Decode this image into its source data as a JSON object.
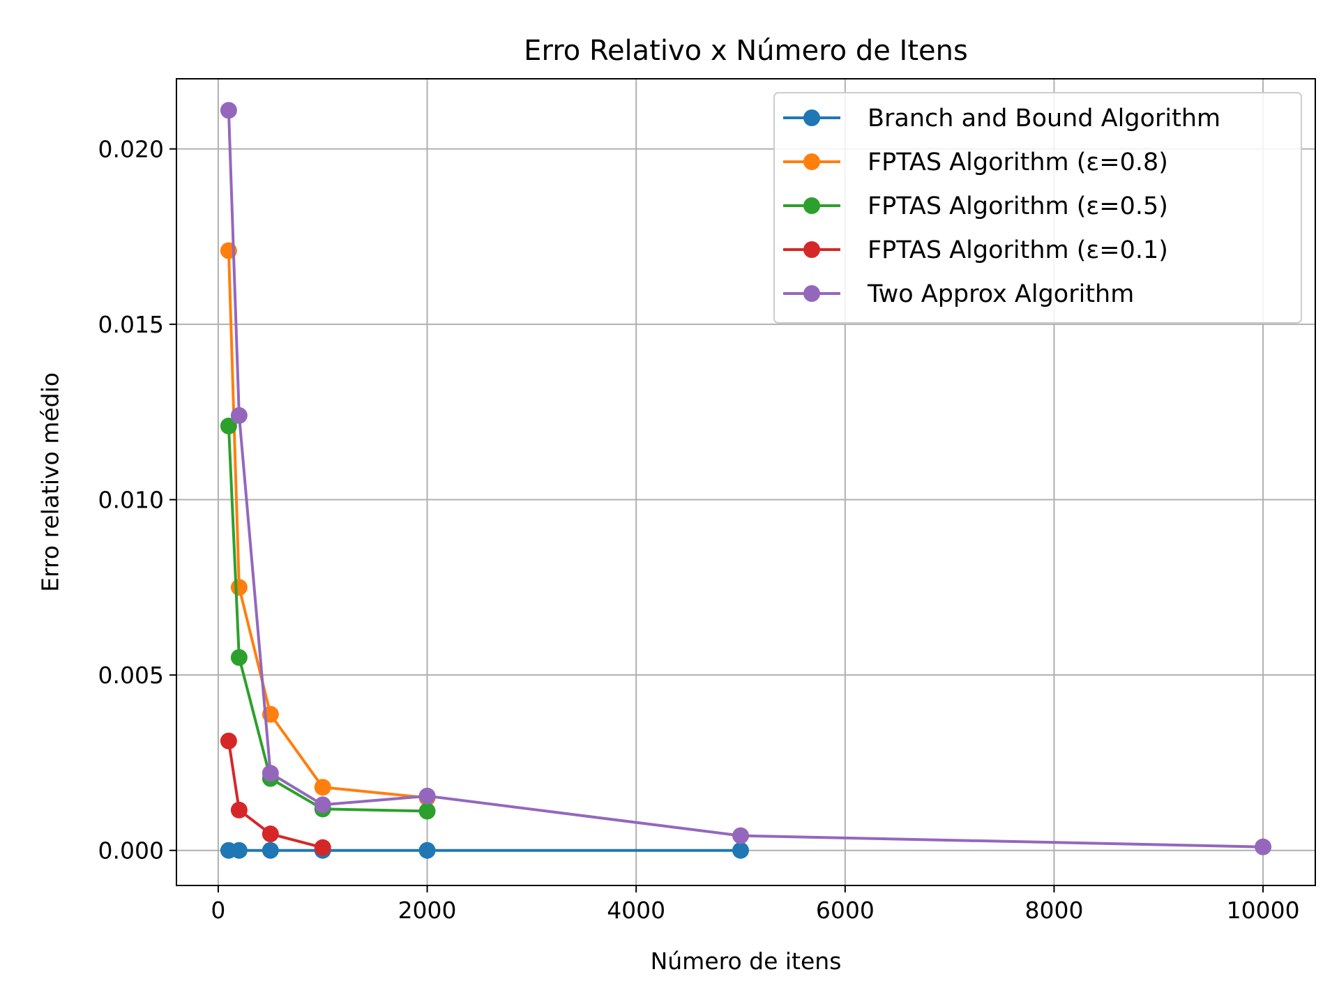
{
  "chart_data": {
    "type": "line",
    "title": "Erro Relativo x Número de Itens",
    "xlabel": "Número de itens",
    "ylabel": "Erro relativo médio",
    "xlim": [
      -400,
      10500
    ],
    "ylim": [
      -0.001,
      0.022
    ],
    "xticks": [
      0,
      2000,
      4000,
      6000,
      8000,
      10000
    ],
    "yticks": [
      0.0,
      0.005,
      0.01,
      0.015,
      0.02
    ],
    "xtick_labels": [
      "0",
      "2000",
      "4000",
      "6000",
      "8000",
      "10000"
    ],
    "ytick_labels": [
      "0.000",
      "0.005",
      "0.010",
      "0.015",
      "0.020"
    ],
    "grid": true,
    "legend_position": "top-right",
    "series": [
      {
        "name": "Branch and Bound Algorithm",
        "color": "#1f77b4",
        "x": [
          100,
          200,
          500,
          1000,
          2000,
          5000
        ],
        "y": [
          0.0,
          0.0,
          0.0,
          0.0,
          0.0,
          0.0
        ]
      },
      {
        "name": "FPTAS Algorithm (ε=0.8)",
        "color": "#ff7f0e",
        "x": [
          100,
          200,
          500,
          1000,
          2000
        ],
        "y": [
          0.0171,
          0.0075,
          0.00388,
          0.0018,
          0.0015
        ]
      },
      {
        "name": "FPTAS Algorithm (ε=0.5)",
        "color": "#2ca02c",
        "x": [
          100,
          200,
          500,
          1000,
          2000
        ],
        "y": [
          0.0121,
          0.0055,
          0.00205,
          0.00118,
          0.00112
        ]
      },
      {
        "name": "FPTAS Algorithm (ε=0.1)",
        "color": "#d62728",
        "x": [
          100,
          200,
          500,
          1000
        ],
        "y": [
          0.00312,
          0.00115,
          0.00047,
          8e-05
        ]
      },
      {
        "name": "Two Approx Algorithm",
        "color": "#9467bd",
        "x": [
          100,
          200,
          500,
          1000,
          2000,
          5000,
          10000
        ],
        "y": [
          0.0211,
          0.0124,
          0.0022,
          0.0013,
          0.00155,
          0.00042,
          0.0001
        ]
      }
    ]
  }
}
